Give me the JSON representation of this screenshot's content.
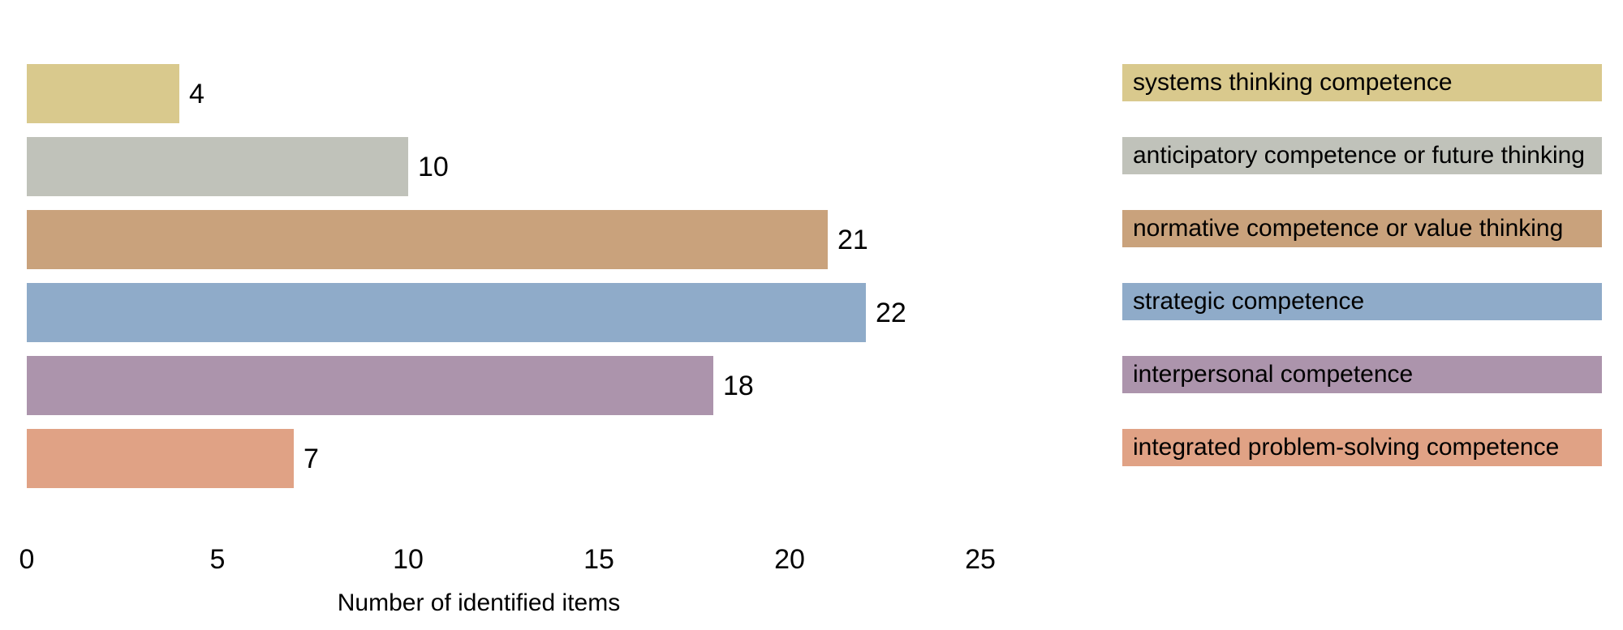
{
  "chart_data": {
    "type": "bar",
    "orientation": "horizontal",
    "title": "",
    "xlabel": "Number of identified items",
    "ylabel": "",
    "categories": [
      "systems thinking competence",
      "anticipatory competence or future thinking",
      "normative competence or value thinking",
      "strategic competence",
      "interpersonal competence",
      "integrated problem-solving competence"
    ],
    "values": [
      4,
      10,
      21,
      22,
      18,
      7
    ],
    "colors": [
      "#d9c98d",
      "#c0c2ba",
      "#c9a27c",
      "#8fabc9",
      "#ac94ac",
      "#e0a285"
    ],
    "x_ticks": [
      "0",
      "5",
      "10",
      "15",
      "20",
      "25"
    ],
    "xlim": [
      0,
      25
    ],
    "grid": false,
    "axis_lines": false,
    "value_labels_shown": true,
    "legend_position": "right",
    "background_color": "#ffffff",
    "text_color": "#000000"
  }
}
